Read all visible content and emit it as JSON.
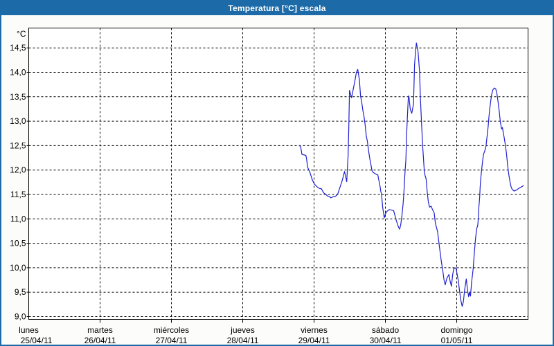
{
  "window": {
    "title": "Temperatura [°C] escala"
  },
  "colors": {
    "titlebar_bg": "#1c6ba8",
    "titlebar_text": "#ffffff",
    "window_border": "#1c6ba8",
    "window_bg": "#fcfdfa",
    "plot_bg": "#ffffff",
    "grid": "#000000",
    "axis": "#000000",
    "label_text": "#000000",
    "line": "#1f1fd0"
  },
  "chart_data": {
    "type": "line",
    "title": "Temperatura [°C] escala",
    "y_unit_label": "°C",
    "ylabel": "",
    "xlabel": "",
    "ylim": [
      9.0,
      14.5
    ],
    "grid": "dashed",
    "legend_position": "none",
    "y_ticks": {
      "values": [
        14.5,
        14.0,
        13.5,
        13.0,
        12.5,
        12.0,
        11.5,
        11.0,
        10.5,
        10.0,
        9.5,
        9.0
      ],
      "labels": [
        "14,5",
        "14,0",
        "13,5",
        "13,0",
        "12,5",
        "12,0",
        "11,5",
        "11,0",
        "10,5",
        "10,0",
        "9,5",
        "9,0"
      ]
    },
    "x_days": [
      {
        "name": "lunes",
        "date": "25/04/11"
      },
      {
        "name": "martes",
        "date": "26/04/11"
      },
      {
        "name": "miércoles",
        "date": "27/04/11"
      },
      {
        "name": "jueves",
        "date": "28/04/11"
      },
      {
        "name": "viernes",
        "date": "29/04/11"
      },
      {
        "name": "sábado",
        "date": "30/04/11"
      },
      {
        "name": "domingo",
        "date": "01/05/11"
      }
    ],
    "x_axis_note": "x unit = days since lunes 25/04/11 00:00; data spans jueves evening to domingo night",
    "series": [
      {
        "name": "Temperatura",
        "color": "#1f1fd0",
        "points": [
          [
            3.796,
            12.5
          ],
          [
            3.813,
            12.47
          ],
          [
            3.83,
            12.32
          ],
          [
            3.885,
            12.3
          ],
          [
            3.895,
            12.23
          ],
          [
            3.91,
            12.06
          ],
          [
            3.943,
            11.95
          ],
          [
            3.975,
            11.8
          ],
          [
            4.007,
            11.71
          ],
          [
            4.04,
            11.66
          ],
          [
            4.055,
            11.64
          ],
          [
            4.081,
            11.62
          ],
          [
            4.101,
            11.62
          ],
          [
            4.12,
            11.57
          ],
          [
            4.136,
            11.53
          ],
          [
            4.168,
            11.5
          ],
          [
            4.185,
            11.47
          ],
          [
            4.217,
            11.46
          ],
          [
            4.233,
            11.43
          ],
          [
            4.265,
            11.45
          ],
          [
            4.297,
            11.46
          ],
          [
            4.33,
            11.5
          ],
          [
            4.362,
            11.64
          ],
          [
            4.394,
            11.78
          ],
          [
            4.427,
            11.97
          ],
          [
            4.458,
            11.76
          ],
          [
            4.478,
            12.3
          ],
          [
            4.487,
            12.9
          ],
          [
            4.497,
            13.63
          ],
          [
            4.526,
            13.48
          ],
          [
            4.572,
            13.82
          ],
          [
            4.594,
            14.0
          ],
          [
            4.613,
            14.06
          ],
          [
            4.626,
            13.93
          ],
          [
            4.635,
            13.86
          ],
          [
            4.652,
            13.51
          ],
          [
            4.668,
            13.39
          ],
          [
            4.684,
            13.22
          ],
          [
            4.7,
            13.1
          ],
          [
            4.717,
            12.91
          ],
          [
            4.732,
            12.7
          ],
          [
            4.749,
            12.58
          ],
          [
            4.765,
            12.39
          ],
          [
            4.78,
            12.25
          ],
          [
            4.797,
            12.11
          ],
          [
            4.813,
            11.99
          ],
          [
            4.829,
            11.95
          ],
          [
            4.862,
            11.92
          ],
          [
            4.894,
            11.9
          ],
          [
            4.91,
            11.78
          ],
          [
            4.926,
            11.66
          ],
          [
            4.935,
            11.57
          ],
          [
            4.947,
            11.5
          ],
          [
            4.961,
            11.25
          ],
          [
            4.984,
            11.02
          ],
          [
            5.0,
            11.1
          ],
          [
            5.019,
            11.15
          ],
          [
            5.055,
            11.19
          ],
          [
            5.087,
            11.18
          ],
          [
            5.116,
            11.17
          ],
          [
            5.152,
            10.97
          ],
          [
            5.184,
            10.83
          ],
          [
            5.2,
            10.79
          ],
          [
            5.216,
            10.88
          ],
          [
            5.232,
            11.07
          ],
          [
            5.249,
            11.31
          ],
          [
            5.258,
            11.5
          ],
          [
            5.276,
            11.97
          ],
          [
            5.287,
            12.2
          ],
          [
            5.297,
            12.7
          ],
          [
            5.306,
            13.0
          ],
          [
            5.32,
            13.45
          ],
          [
            5.329,
            13.52
          ],
          [
            5.349,
            13.25
          ],
          [
            5.37,
            13.16
          ],
          [
            5.394,
            13.35
          ],
          [
            5.409,
            14.15
          ],
          [
            5.426,
            14.48
          ],
          [
            5.435,
            14.6
          ],
          [
            5.457,
            14.43
          ],
          [
            5.47,
            14.2
          ],
          [
            5.48,
            14.0
          ],
          [
            5.49,
            13.5
          ],
          [
            5.506,
            13.0
          ],
          [
            5.522,
            12.5
          ],
          [
            5.545,
            12.0
          ],
          [
            5.556,
            11.89
          ],
          [
            5.571,
            11.82
          ],
          [
            5.587,
            11.54
          ],
          [
            5.602,
            11.35
          ],
          [
            5.619,
            11.24
          ],
          [
            5.641,
            11.26
          ],
          [
            5.658,
            11.2
          ],
          [
            5.684,
            11.12
          ],
          [
            5.699,
            10.93
          ],
          [
            5.716,
            10.83
          ],
          [
            5.732,
            10.74
          ],
          [
            5.748,
            10.55
          ],
          [
            5.764,
            10.36
          ],
          [
            5.783,
            10.15
          ],
          [
            5.803,
            9.96
          ],
          [
            5.822,
            9.75
          ],
          [
            5.839,
            9.65
          ],
          [
            5.861,
            9.78
          ],
          [
            5.89,
            9.86
          ],
          [
            5.909,
            9.72
          ],
          [
            5.926,
            9.62
          ],
          [
            5.943,
            9.85
          ],
          [
            5.958,
            9.98
          ],
          [
            5.99,
            10.0
          ],
          [
            6.006,
            9.87
          ],
          [
            6.022,
            9.74
          ],
          [
            6.038,
            9.55
          ],
          [
            6.054,
            9.36
          ],
          [
            6.077,
            9.21
          ],
          [
            6.093,
            9.3
          ],
          [
            6.112,
            9.55
          ],
          [
            6.134,
            9.77
          ],
          [
            6.151,
            9.55
          ],
          [
            6.167,
            9.41
          ],
          [
            6.18,
            9.5
          ],
          [
            6.193,
            9.42
          ],
          [
            6.209,
            9.7
          ],
          [
            6.231,
            9.98
          ],
          [
            6.248,
            10.31
          ],
          [
            6.264,
            10.6
          ],
          [
            6.28,
            10.79
          ],
          [
            6.296,
            10.88
          ],
          [
            6.306,
            11.07
          ],
          [
            6.312,
            11.26
          ],
          [
            6.322,
            11.45
          ],
          [
            6.328,
            11.64
          ],
          [
            6.338,
            11.83
          ],
          [
            6.347,
            11.97
          ],
          [
            6.361,
            12.16
          ],
          [
            6.376,
            12.32
          ],
          [
            6.393,
            12.39
          ],
          [
            6.409,
            12.47
          ],
          [
            6.425,
            12.68
          ],
          [
            6.441,
            12.89
          ],
          [
            6.451,
            13.08
          ],
          [
            6.463,
            13.25
          ],
          [
            6.477,
            13.41
          ],
          [
            6.489,
            13.54
          ],
          [
            6.506,
            13.64
          ],
          [
            6.528,
            13.68
          ],
          [
            6.548,
            13.66
          ],
          [
            6.564,
            13.56
          ],
          [
            6.579,
            13.41
          ],
          [
            6.596,
            13.2
          ],
          [
            6.612,
            12.99
          ],
          [
            6.628,
            12.84
          ],
          [
            6.641,
            12.87
          ],
          [
            6.651,
            12.78
          ],
          [
            6.666,
            12.66
          ],
          [
            6.683,
            12.51
          ],
          [
            6.699,
            12.32
          ],
          [
            6.715,
            12.09
          ],
          [
            6.731,
            11.9
          ],
          [
            6.748,
            11.76
          ],
          [
            6.763,
            11.65
          ],
          [
            6.78,
            11.6
          ],
          [
            6.806,
            11.57
          ],
          [
            6.838,
            11.59
          ],
          [
            6.876,
            11.63
          ],
          [
            6.915,
            11.66
          ],
          [
            6.934,
            11.68
          ]
        ]
      }
    ]
  }
}
